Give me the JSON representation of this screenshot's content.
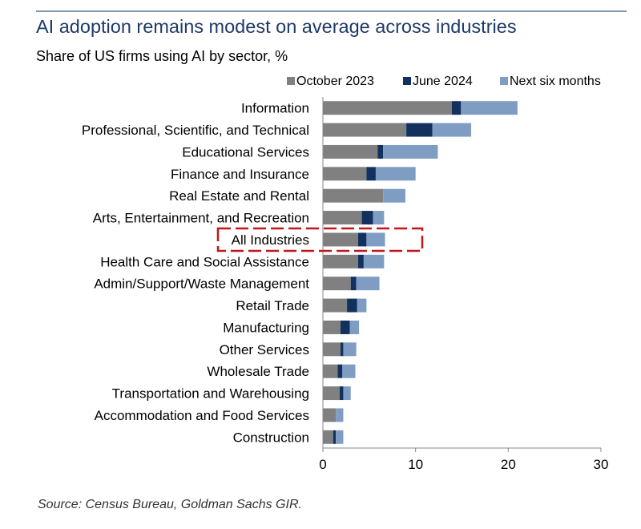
{
  "header": {
    "title": "AI adoption remains modest on average across industries",
    "subtitle": "Share of US firms using AI by sector, %"
  },
  "footer": {
    "source": "Source: Census Bureau, Goldman Sachs GIR."
  },
  "colors": {
    "october_2023": "#808080",
    "june_2024": "#13315f",
    "next_six_months": "#7f9cc2",
    "highlight": "#c0161c",
    "axis": "#888888"
  },
  "chart_data": {
    "type": "bar",
    "orientation": "horizontal",
    "stacked": true,
    "title": "",
    "xlabel": "",
    "ylabel": "",
    "xlim": [
      0,
      30
    ],
    "xticks": [
      0,
      10,
      20,
      30
    ],
    "grid": false,
    "legend_position": "top-right",
    "highlighted_category": "All Industries",
    "categories": [
      "Information",
      "Professional, Scientific, and Technical",
      "Educational Services",
      "Finance and Insurance",
      "Real Estate and Rental",
      "Arts, Entertainment, and Recreation",
      "All Industries",
      "Health Care and Social Assistance",
      "Admin/Support/Waste Management",
      "Retail Trade",
      "Manufacturing",
      "Other Services",
      "Wholesale Trade",
      "Transportation and Warehousing",
      "Accommodation and Food Services",
      "Construction"
    ],
    "series": [
      {
        "name": "October 2023",
        "values": [
          13.9,
          9.0,
          5.9,
          4.7,
          6.5,
          4.2,
          3.8,
          3.8,
          3.0,
          2.6,
          1.9,
          1.9,
          1.6,
          1.8,
          1.4,
          1.1
        ]
      },
      {
        "name": "June 2024",
        "values": [
          1.0,
          2.8,
          0.6,
          1.0,
          0.0,
          1.2,
          0.9,
          0.6,
          0.6,
          1.1,
          1.0,
          0.3,
          0.5,
          0.4,
          0.0,
          0.3
        ]
      },
      {
        "name": "Next six months",
        "values": [
          6.1,
          4.2,
          5.9,
          4.3,
          2.4,
          1.2,
          2.0,
          2.2,
          2.5,
          1.0,
          1.0,
          1.4,
          1.4,
          0.8,
          0.8,
          0.8
        ]
      }
    ]
  }
}
